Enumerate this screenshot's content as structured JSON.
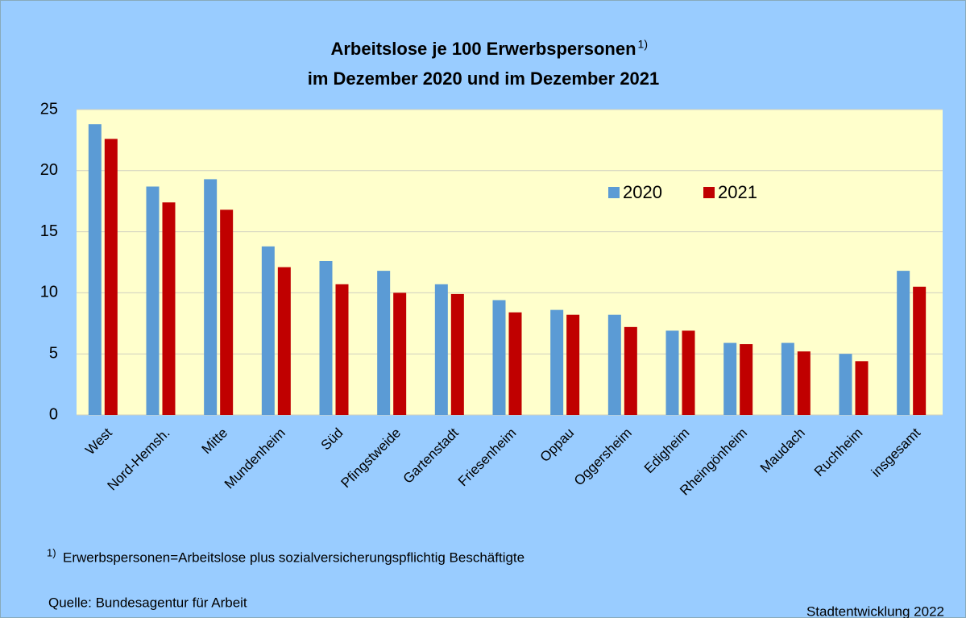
{
  "chart_data": {
    "type": "bar",
    "title": [
      "Arbeitslose je 100 Erwerbspersonen",
      "im Dezember 2020 und im Dezember 2021"
    ],
    "title_superscript": "1)",
    "categories": [
      "West",
      "Nord-Hemsh.",
      "Mitte",
      "Mundenheim",
      "Süd",
      "Pfingstweide",
      "Gartenstadt",
      "Friesenheim",
      "Oppau",
      "Oggersheim",
      "Edigheim",
      "Rheingönheim",
      "Maudach",
      "Ruchheim",
      "insgesamt"
    ],
    "series": [
      {
        "name": "2020",
        "color": "#5b9bd5",
        "values": [
          23.8,
          18.7,
          19.3,
          13.8,
          12.6,
          11.8,
          10.7,
          9.4,
          8.6,
          8.2,
          6.9,
          5.9,
          5.9,
          5.0,
          11.8
        ]
      },
      {
        "name": "2021",
        "color": "#c00000",
        "values": [
          22.6,
          17.4,
          16.8,
          12.1,
          10.7,
          10.0,
          9.9,
          8.4,
          8.2,
          7.2,
          6.9,
          5.8,
          5.2,
          4.4,
          10.5
        ]
      }
    ],
    "ylim": [
      0,
      25
    ],
    "yticks": [
      0,
      5,
      10,
      15,
      20,
      25
    ],
    "grid": true,
    "footnote": {
      "marker": "1)",
      "text": "Erwerbspersonen=Arbeitslose plus sozialversicherungspflichtig Beschäftigte"
    },
    "source": "Quelle: Bundesagentur für Arbeit",
    "credit": "Stadtentwicklung 2022"
  }
}
